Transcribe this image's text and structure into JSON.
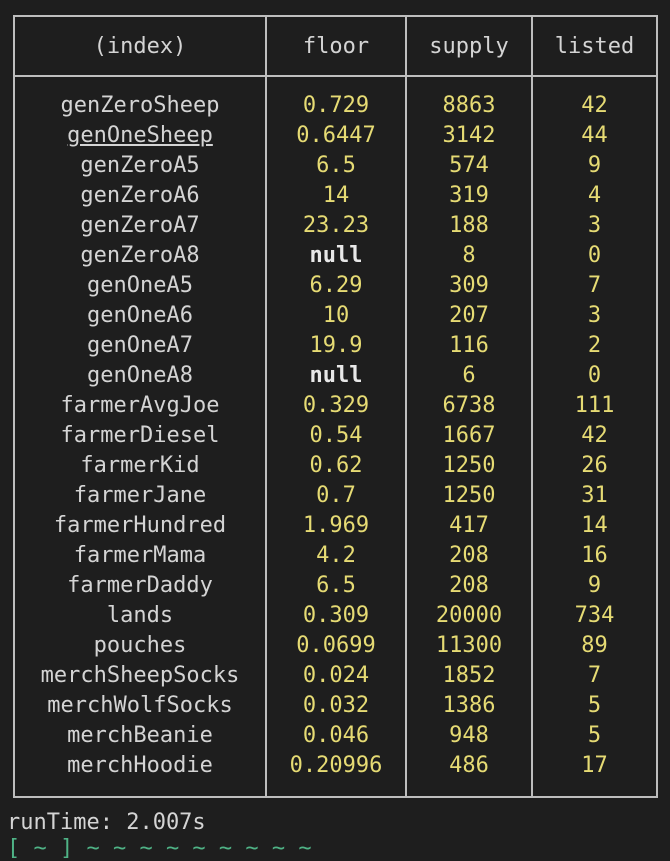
{
  "table": {
    "headers": [
      "(index)",
      "floor",
      "supply",
      "listed"
    ],
    "rows": [
      {
        "index": "genZeroSheep",
        "floor": "0.729",
        "supply": "8863",
        "listed": "42"
      },
      {
        "index": "genOneSheep",
        "floor": "0.6447",
        "supply": "3142",
        "listed": "44",
        "underlined": true
      },
      {
        "index": "genZeroA5",
        "floor": "6.5",
        "supply": "574",
        "listed": "9"
      },
      {
        "index": "genZeroA6",
        "floor": "14",
        "supply": "319",
        "listed": "4"
      },
      {
        "index": "genZeroA7",
        "floor": "23.23",
        "supply": "188",
        "listed": "3"
      },
      {
        "index": "genZeroA8",
        "floor": "null",
        "supply": "8",
        "listed": "0"
      },
      {
        "index": "genOneA5",
        "floor": "6.29",
        "supply": "309",
        "listed": "7"
      },
      {
        "index": "genOneA6",
        "floor": "10",
        "supply": "207",
        "listed": "3"
      },
      {
        "index": "genOneA7",
        "floor": "19.9",
        "supply": "116",
        "listed": "2"
      },
      {
        "index": "genOneA8",
        "floor": "null",
        "supply": "6",
        "listed": "0"
      },
      {
        "index": "farmerAvgJoe",
        "floor": "0.329",
        "supply": "6738",
        "listed": "111"
      },
      {
        "index": "farmerDiesel",
        "floor": "0.54",
        "supply": "1667",
        "listed": "42"
      },
      {
        "index": "farmerKid",
        "floor": "0.62",
        "supply": "1250",
        "listed": "26"
      },
      {
        "index": "farmerJane",
        "floor": "0.7",
        "supply": "1250",
        "listed": "31"
      },
      {
        "index": "farmerHundred",
        "floor": "1.969",
        "supply": "417",
        "listed": "14"
      },
      {
        "index": "farmerMama",
        "floor": "4.2",
        "supply": "208",
        "listed": "16"
      },
      {
        "index": "farmerDaddy",
        "floor": "6.5",
        "supply": "208",
        "listed": "9"
      },
      {
        "index": "lands",
        "floor": "0.309",
        "supply": "20000",
        "listed": "734"
      },
      {
        "index": "pouches",
        "floor": "0.0699",
        "supply": "11300",
        "listed": "89"
      },
      {
        "index": "merchSheepSocks",
        "floor": "0.024",
        "supply": "1852",
        "listed": "7"
      },
      {
        "index": "merchWolfSocks",
        "floor": "0.032",
        "supply": "1386",
        "listed": "5"
      },
      {
        "index": "merchBeanie",
        "floor": "0.046",
        "supply": "948",
        "listed": "5"
      },
      {
        "index": "merchHoodie",
        "floor": "0.20996",
        "supply": "486",
        "listed": "17"
      }
    ]
  },
  "runtime": "runTime: 2.007s",
  "cut_line": "[ ~ ] ~ ~ ~ ~ ~ ~ ~ ~ ~",
  "colors": {
    "background": "#1e1e1e",
    "text": "#d4d4d4",
    "number": "#e6db74",
    "border": "#bdbdbd",
    "prompt": "#4fb386"
  }
}
